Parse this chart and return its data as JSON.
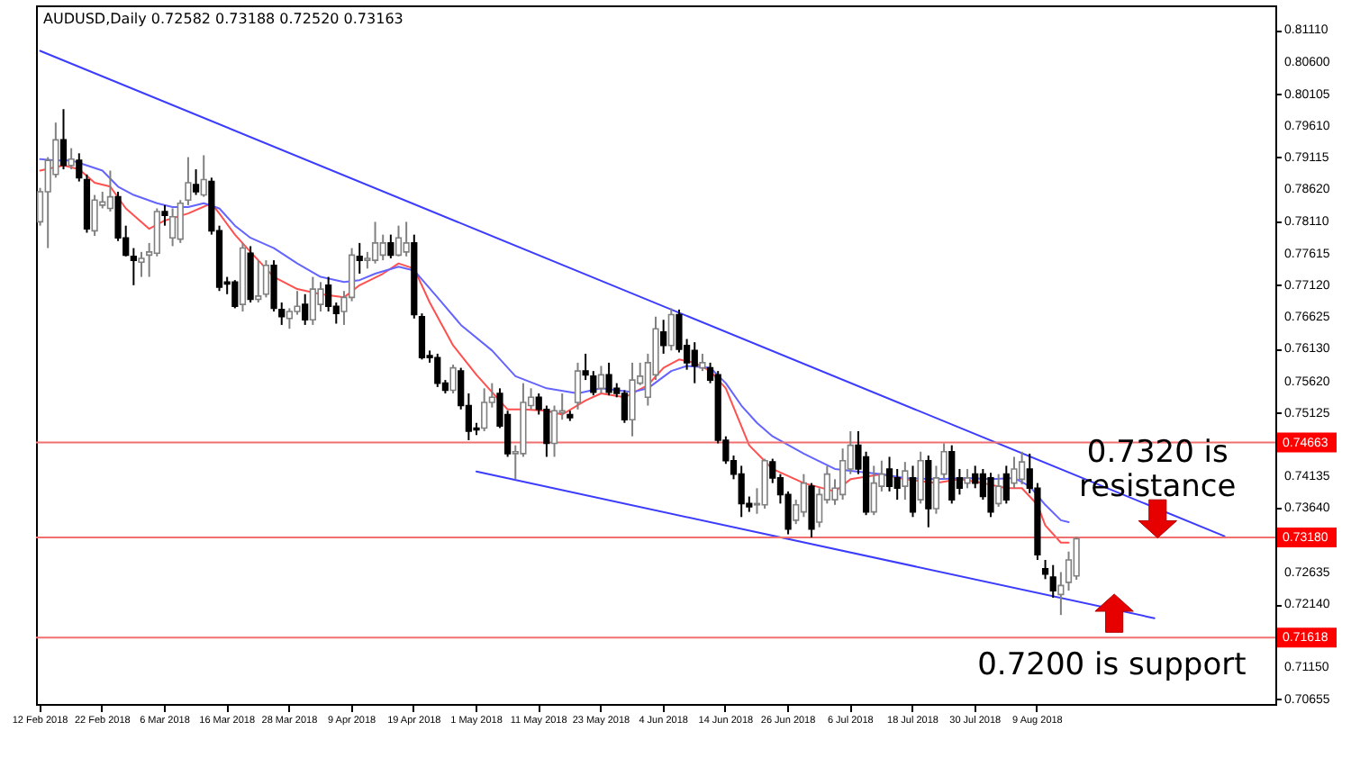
{
  "chart_data": {
    "type": "candlestick",
    "title": "AUDUSD,Daily  0.72582 0.73188 0.72520 0.73163",
    "categories": [
      "12 Feb 2018",
      null,
      null,
      null,
      null,
      null,
      null,
      null,
      "22 Feb 2018",
      null,
      null,
      null,
      null,
      null,
      null,
      null,
      "6 Mar 2018",
      null,
      null,
      null,
      null,
      null,
      null,
      null,
      "16 Mar 2018",
      null,
      null,
      null,
      null,
      null,
      null,
      null,
      "28 Mar 2018",
      null,
      null,
      null,
      null,
      null,
      null,
      null,
      "9 Apr 2018",
      null,
      null,
      null,
      null,
      null,
      null,
      null,
      "19 Apr 2018",
      null,
      null,
      null,
      null,
      null,
      null,
      null,
      "1 May 2018",
      null,
      null,
      null,
      null,
      null,
      null,
      null,
      "11 May 2018",
      null,
      null,
      null,
      null,
      null,
      null,
      null,
      "23 May 2018",
      null,
      null,
      null,
      null,
      null,
      null,
      null,
      "4 Jun 2018",
      null,
      null,
      null,
      null,
      null,
      null,
      null,
      "14 Jun 2018",
      null,
      null,
      null,
      null,
      null,
      null,
      null,
      "26 Jun 2018",
      null,
      null,
      null,
      null,
      null,
      null,
      null,
      "6 Jul 2018",
      null,
      null,
      null,
      null,
      null,
      null,
      null,
      "18 Jul 2018",
      null,
      null,
      null,
      null,
      null,
      null,
      null,
      "30 Jul 2018",
      null,
      null,
      null,
      null,
      null,
      null,
      null,
      "9 Aug 2018",
      null,
      null,
      null,
      null,
      null,
      null,
      null,
      null,
      null,
      null,
      null,
      null,
      null,
      null,
      null,
      null,
      null,
      null,
      null,
      null,
      null,
      null,
      null,
      null,
      null,
      null,
      null,
      null,
      null,
      null
    ],
    "ohlc": [
      [
        0.7811,
        0.7864,
        0.7805,
        0.7858
      ],
      [
        0.7858,
        0.7912,
        0.777,
        0.7907
      ],
      [
        0.7885,
        0.7966,
        0.788,
        0.7939
      ],
      [
        0.7939,
        0.7987,
        0.7893,
        0.7899
      ],
      [
        0.7899,
        0.7926,
        0.7893,
        0.7909
      ],
      [
        0.7907,
        0.7918,
        0.7874,
        0.788
      ],
      [
        0.7877,
        0.7885,
        0.7794,
        0.78
      ],
      [
        0.7797,
        0.7853,
        0.7789,
        0.7845
      ],
      [
        0.7837,
        0.7858,
        0.7832,
        0.7842
      ],
      [
        0.7832,
        0.7891,
        0.7827,
        0.785
      ],
      [
        0.785,
        0.7858,
        0.7781,
        0.7786
      ],
      [
        0.7786,
        0.7805,
        0.7757,
        0.7759
      ],
      [
        0.7757,
        0.777,
        0.7712,
        0.7751
      ],
      [
        0.7748,
        0.7764,
        0.7725,
        0.7754
      ],
      [
        0.7759,
        0.7778,
        0.7725,
        0.7764
      ],
      [
        0.7762,
        0.7832,
        0.7757,
        0.7827
      ],
      [
        0.7827,
        0.7837,
        0.7805,
        0.7821
      ],
      [
        0.7786,
        0.7832,
        0.7773,
        0.7819
      ],
      [
        0.7784,
        0.7845,
        0.7778,
        0.784
      ],
      [
        0.7845,
        0.7912,
        0.7837,
        0.7872
      ],
      [
        0.7869,
        0.7893,
        0.7853,
        0.7858
      ],
      [
        0.7853,
        0.7915,
        0.785,
        0.7877
      ],
      [
        0.7874,
        0.788,
        0.7791,
        0.7797
      ],
      [
        0.7797,
        0.7805,
        0.7703,
        0.7709
      ],
      [
        0.7717,
        0.7725,
        0.7698,
        0.7714
      ],
      [
        0.7717,
        0.772,
        0.7676,
        0.7679
      ],
      [
        0.7682,
        0.7778,
        0.7671,
        0.777
      ],
      [
        0.7762,
        0.7773,
        0.7685,
        0.769
      ],
      [
        0.769,
        0.7751,
        0.7685,
        0.7695
      ],
      [
        0.7698,
        0.7751,
        0.7693,
        0.7743
      ],
      [
        0.7743,
        0.7751,
        0.7671,
        0.7676
      ],
      [
        0.7674,
        0.7685,
        0.765,
        0.7663
      ],
      [
        0.766,
        0.7676,
        0.7644,
        0.7671
      ],
      [
        0.7671,
        0.7703,
        0.7666,
        0.7679
      ],
      [
        0.7682,
        0.7698,
        0.765,
        0.7658
      ],
      [
        0.7658,
        0.7725,
        0.765,
        0.7706
      ],
      [
        0.7682,
        0.7717,
        0.7671,
        0.7706
      ],
      [
        0.7712,
        0.7725,
        0.7671,
        0.7679
      ],
      [
        0.7679,
        0.7685,
        0.7652,
        0.7668
      ],
      [
        0.7671,
        0.7703,
        0.765,
        0.7693
      ],
      [
        0.7693,
        0.777,
        0.7687,
        0.7759
      ],
      [
        0.7757,
        0.7778,
        0.773,
        0.7751
      ],
      [
        0.7751,
        0.7764,
        0.7738,
        0.7754
      ],
      [
        0.7751,
        0.7811,
        0.7746,
        0.7778
      ],
      [
        0.7759,
        0.7791,
        0.7751,
        0.7778
      ],
      [
        0.7778,
        0.7791,
        0.7754,
        0.7759
      ],
      [
        0.7759,
        0.7805,
        0.7757,
        0.7786
      ],
      [
        0.7764,
        0.7811,
        0.7757,
        0.7778
      ],
      [
        0.7778,
        0.7791,
        0.766,
        0.7666
      ],
      [
        0.7663,
        0.7668,
        0.7596,
        0.7599
      ],
      [
        0.7602,
        0.761,
        0.7591,
        0.7599
      ],
      [
        0.7599,
        0.7605,
        0.7553,
        0.7559
      ],
      [
        0.7559,
        0.7564,
        0.7543,
        0.7548
      ],
      [
        0.7548,
        0.7588,
        0.7543,
        0.7583
      ],
      [
        0.7578,
        0.7583,
        0.7518,
        0.7524
      ],
      [
        0.7524,
        0.7543,
        0.747,
        0.7484
      ],
      [
        0.7489,
        0.7497,
        0.7478,
        0.7486
      ],
      [
        0.7489,
        0.7551,
        0.7484,
        0.7529
      ],
      [
        0.7529,
        0.7559,
        0.7521,
        0.7537
      ],
      [
        0.7543,
        0.7551,
        0.7489,
        0.7492
      ],
      [
        0.751,
        0.7516,
        0.7444,
        0.7449
      ],
      [
        0.7449,
        0.7462,
        0.7409,
        0.7452
      ],
      [
        0.7449,
        0.7559,
        0.7444,
        0.7529
      ],
      [
        0.7524,
        0.7551,
        0.7518,
        0.7537
      ],
      [
        0.7537,
        0.7543,
        0.751,
        0.7518
      ],
      [
        0.7518,
        0.7524,
        0.7444,
        0.7465
      ],
      [
        0.7465,
        0.7524,
        0.7444,
        0.7516
      ],
      [
        0.7513,
        0.7543,
        0.7502,
        0.7516
      ],
      [
        0.751,
        0.7516,
        0.75,
        0.7505
      ],
      [
        0.7529,
        0.7591,
        0.7518,
        0.7578
      ],
      [
        0.7578,
        0.7605,
        0.7564,
        0.7572
      ],
      [
        0.757,
        0.7578,
        0.754,
        0.7545
      ],
      [
        0.7551,
        0.7586,
        0.7543,
        0.7572
      ],
      [
        0.7572,
        0.7591,
        0.754,
        0.7545
      ],
      [
        0.7551,
        0.7559,
        0.7537,
        0.7543
      ],
      [
        0.7543,
        0.7548,
        0.7497,
        0.7502
      ],
      [
        0.7502,
        0.7591,
        0.7476,
        0.7564
      ],
      [
        0.7559,
        0.7591,
        0.7556,
        0.757
      ],
      [
        0.7537,
        0.7605,
        0.7524,
        0.7591
      ],
      [
        0.7572,
        0.7663,
        0.7564,
        0.7644
      ],
      [
        0.7639,
        0.7658,
        0.7605,
        0.7618
      ],
      [
        0.7618,
        0.7676,
        0.761,
        0.7666
      ],
      [
        0.7666,
        0.7674,
        0.7607,
        0.7612
      ],
      [
        0.7618,
        0.7628,
        0.758,
        0.7591
      ],
      [
        0.761,
        0.7623,
        0.7559,
        0.7586
      ],
      [
        0.7583,
        0.7605,
        0.7578,
        0.7591
      ],
      [
        0.7583,
        0.7591,
        0.7559,
        0.7564
      ],
      [
        0.7572,
        0.7578,
        0.7465,
        0.747
      ],
      [
        0.747,
        0.7476,
        0.7433,
        0.7438
      ],
      [
        0.7438,
        0.7446,
        0.7409,
        0.7417
      ],
      [
        0.7417,
        0.743,
        0.735,
        0.7371
      ],
      [
        0.7371,
        0.7382,
        0.7358,
        0.7366
      ],
      [
        0.7369,
        0.7395,
        0.7355,
        0.7371
      ],
      [
        0.7369,
        0.7441,
        0.7363,
        0.7438
      ],
      [
        0.7436,
        0.7441,
        0.7403,
        0.7411
      ],
      [
        0.7411,
        0.7417,
        0.7371,
        0.7385
      ],
      [
        0.7385,
        0.739,
        0.7323,
        0.7331
      ],
      [
        0.7345,
        0.7377,
        0.7339,
        0.7369
      ],
      [
        0.7358,
        0.7417,
        0.735,
        0.7403
      ],
      [
        0.7398,
        0.7403,
        0.7318,
        0.7331
      ],
      [
        0.7342,
        0.7395,
        0.7334,
        0.7385
      ],
      [
        0.7377,
        0.743,
        0.7371,
        0.7417
      ],
      [
        0.7377,
        0.7409,
        0.7369,
        0.7395
      ],
      [
        0.7385,
        0.7457,
        0.7377,
        0.7438
      ],
      [
        0.7425,
        0.7484,
        0.7417,
        0.7462
      ],
      [
        0.7462,
        0.7484,
        0.7417,
        0.7425
      ],
      [
        0.7444,
        0.7452,
        0.7353,
        0.7358
      ],
      [
        0.7358,
        0.743,
        0.7353,
        0.7403
      ],
      [
        0.7398,
        0.7438,
        0.739,
        0.7417
      ],
      [
        0.7425,
        0.7444,
        0.739,
        0.7398
      ],
      [
        0.7411,
        0.7425,
        0.7377,
        0.7395
      ],
      [
        0.7398,
        0.7436,
        0.7377,
        0.7422
      ],
      [
        0.7411,
        0.743,
        0.735,
        0.7358
      ],
      [
        0.7377,
        0.7452,
        0.7371,
        0.7438
      ],
      [
        0.7438,
        0.7446,
        0.7334,
        0.7363
      ],
      [
        0.7363,
        0.743,
        0.7355,
        0.7411
      ],
      [
        0.7417,
        0.7465,
        0.7409,
        0.7452
      ],
      [
        0.7452,
        0.7462,
        0.7371,
        0.7377
      ],
      [
        0.7411,
        0.7425,
        0.7385,
        0.7395
      ],
      [
        0.7403,
        0.7425,
        0.7395,
        0.7411
      ],
      [
        0.7417,
        0.743,
        0.7395,
        0.7403
      ],
      [
        0.7417,
        0.7425,
        0.7377,
        0.7382
      ],
      [
        0.7411,
        0.7419,
        0.735,
        0.7358
      ],
      [
        0.7371,
        0.7417,
        0.7366,
        0.7398
      ],
      [
        0.7417,
        0.743,
        0.7371,
        0.7377
      ],
      [
        0.7403,
        0.7444,
        0.7395,
        0.7425
      ],
      [
        0.7409,
        0.7452,
        0.7401,
        0.7436
      ],
      [
        0.7425,
        0.7449,
        0.7387,
        0.7395
      ],
      [
        0.7395,
        0.7403,
        0.7283,
        0.7291
      ],
      [
        0.7269,
        0.7283,
        0.7253,
        0.7261
      ],
      [
        0.7256,
        0.7275,
        0.7224,
        0.7235
      ],
      [
        0.7229,
        0.7264,
        0.7197,
        0.7243
      ],
      [
        0.7248,
        0.7296,
        0.7235,
        0.7283
      ],
      [
        0.7258,
        0.7319,
        0.7252,
        0.7316
      ],
      null,
      null,
      null,
      null,
      null,
      null,
      null,
      null,
      null,
      null,
      null,
      null,
      null,
      null,
      null,
      null,
      null,
      null,
      null,
      null,
      null,
      null,
      null,
      null,
      null
    ],
    "series": [
      {
        "type": "line",
        "color": "#ff5050",
        "values": [
          0.7891,
          null,
          null,
          0.7899,
          null,
          0.7893,
          null,
          0.7872,
          null,
          0.7866,
          null,
          0.7832,
          null,
          null,
          0.78,
          null,
          0.7813,
          null,
          null,
          0.7824,
          null,
          null,
          0.784,
          0.7824,
          null,
          0.7791,
          null,
          0.7764,
          null,
          null,
          0.7725,
          null,
          null,
          0.7706,
          null,
          null,
          0.7698,
          null,
          null,
          0.7693,
          null,
          0.7712,
          null,
          null,
          0.773,
          null,
          0.7746,
          null,
          0.7738,
          null,
          0.7685,
          null,
          null,
          0.7618,
          null,
          null,
          0.7572,
          null,
          null,
          null,
          0.7518,
          null,
          0.7518,
          null,
          null,
          0.7516,
          null,
          0.751,
          null,
          null,
          0.7532,
          null,
          0.7543,
          null,
          null,
          0.7537,
          null,
          null,
          0.7556,
          null,
          0.7583,
          null,
          0.7596,
          null,
          0.7591,
          null,
          0.7578,
          null,
          0.7551,
          null,
          null,
          0.7462,
          null,
          null,
          0.7425,
          null,
          null,
          null,
          0.7403,
          null,
          null,
          null,
          0.739,
          null,
          0.7409,
          null,
          null,
          null,
          0.7417,
          null,
          null,
          0.7409,
          null,
          null,
          null,
          0.7403,
          null,
          null,
          0.7409,
          null,
          null,
          0.7403,
          null,
          null,
          0.7395,
          null,
          0.7395,
          null,
          0.7369,
          0.7337,
          null,
          0.731,
          0.731,
          null,
          null,
          null,
          null,
          null,
          null,
          null,
          null,
          null,
          null,
          null,
          null,
          null,
          null,
          null,
          null,
          null,
          null,
          null,
          null,
          null,
          null,
          null,
          null,
          null,
          null
        ]
      },
      {
        "type": "line",
        "color": "#6464ff",
        "values": [
          0.7909,
          null,
          0.7907,
          null,
          0.7907,
          null,
          0.7899,
          null,
          0.7891,
          null,
          0.7866,
          null,
          0.7853,
          null,
          null,
          0.784,
          null,
          0.7834,
          null,
          0.7834,
          null,
          0.784,
          null,
          0.7832,
          null,
          0.7805,
          null,
          0.7786,
          null,
          null,
          0.777,
          null,
          null,
          0.7746,
          null,
          null,
          0.7725,
          null,
          null,
          0.7717,
          null,
          0.772,
          null,
          0.773,
          null,
          null,
          0.7741,
          null,
          0.7735,
          null,
          null,
          0.7693,
          null,
          null,
          0.765,
          null,
          null,
          null,
          0.761,
          null,
          null,
          0.757,
          null,
          null,
          null,
          0.7551,
          null,
          null,
          null,
          0.7543,
          null,
          null,
          0.7551,
          null,
          null,
          null,
          0.7545,
          null,
          0.7551,
          null,
          null,
          0.7578,
          null,
          0.7586,
          null,
          null,
          0.7583,
          null,
          0.7559,
          null,
          0.7524,
          null,
          0.7497,
          null,
          0.7476,
          null,
          null,
          null,
          0.7449,
          null,
          null,
          null,
          0.7425,
          null,
          0.7422,
          null,
          null,
          null,
          0.7417,
          null,
          null,
          0.7411,
          null,
          null,
          null,
          0.7409,
          null,
          null,
          null,
          0.7411,
          null,
          null,
          0.7409,
          null,
          null,
          0.7411,
          null,
          0.7398,
          null,
          0.7369,
          null,
          0.7345,
          0.7342,
          null,
          null,
          null,
          null,
          null,
          null,
          null,
          null,
          null,
          null,
          null,
          null,
          null,
          null,
          null,
          null,
          null,
          null,
          null,
          null,
          null,
          null,
          null,
          null,
          null,
          null
        ]
      },
      {
        "type": "line",
        "color": "#3c3cff",
        "values": [
          0.8078,
          null,
          null,
          null,
          null,
          null,
          null,
          null,
          null,
          null,
          null,
          null,
          null,
          null,
          null,
          null,
          null,
          null,
          null,
          null,
          null,
          null,
          null,
          null,
          null,
          null,
          null,
          null,
          null,
          null,
          null,
          null,
          null,
          null,
          null,
          null,
          null,
          null,
          null,
          null,
          null,
          null,
          null,
          null,
          null,
          null,
          null,
          null,
          null,
          null,
          null,
          null,
          null,
          null,
          null,
          null,
          null,
          null,
          null,
          null,
          null,
          null,
          null,
          null,
          null,
          null,
          null,
          null,
          null,
          null,
          null,
          null,
          null,
          null,
          null,
          null,
          null,
          null,
          null,
          null,
          null,
          null,
          null,
          null,
          null,
          null,
          null,
          null,
          null,
          null,
          null,
          null,
          null,
          null,
          null,
          null,
          null,
          null,
          null,
          null,
          null,
          null,
          null,
          null,
          null,
          null,
          null,
          null,
          null,
          null,
          null,
          null,
          null,
          null,
          null,
          null,
          null,
          null,
          null,
          null,
          null,
          null,
          null,
          null,
          null,
          null,
          null,
          null,
          null,
          null,
          null,
          null,
          null,
          null,
          null,
          null,
          null,
          null,
          null,
          null,
          null,
          null,
          null,
          null,
          null,
          null,
          null,
          null,
          null,
          null,
          null,
          null,
          0.732,
          null,
          null,
          null,
          null,
          null,
          null
        ]
      },
      {
        "type": "line",
        "color": "#3c3cff",
        "values": [
          null,
          null,
          null,
          null,
          null,
          null,
          null,
          null,
          null,
          null,
          null,
          null,
          null,
          null,
          null,
          null,
          null,
          null,
          null,
          null,
          null,
          null,
          null,
          null,
          null,
          null,
          null,
          null,
          null,
          null,
          null,
          null,
          null,
          null,
          null,
          null,
          null,
          null,
          null,
          null,
          null,
          null,
          null,
          null,
          null,
          null,
          null,
          null,
          null,
          null,
          null,
          null,
          null,
          null,
          null,
          null,
          0.7421,
          null,
          null,
          null,
          null,
          null,
          null,
          null,
          null,
          null,
          null,
          null,
          null,
          null,
          null,
          null,
          null,
          null,
          null,
          null,
          null,
          null,
          null,
          null,
          null,
          null,
          null,
          null,
          null,
          null,
          null,
          null,
          null,
          null,
          null,
          null,
          null,
          null,
          null,
          null,
          null,
          null,
          null,
          null,
          null,
          null,
          null,
          null,
          null,
          null,
          null,
          null,
          null,
          null,
          null,
          null,
          null,
          null,
          null,
          null,
          null,
          null,
          null,
          null,
          null,
          null,
          null,
          null,
          null,
          null,
          null,
          null,
          null,
          null,
          null,
          null,
          null,
          null,
          null,
          null,
          null,
          null,
          null,
          null,
          null,
          null,
          null,
          0.7192,
          null,
          null,
          null,
          null,
          null,
          null,
          null,
          null,
          null,
          null,
          null,
          null,
          null,
          null,
          null
        ]
      }
    ],
    "ylim": [
      0.7058,
      0.8149
    ],
    "yticks": [
      {
        "value": 0.8111,
        "label": "0.81110"
      },
      {
        "value": 0.806,
        "label": "0.80600"
      },
      {
        "value": 0.80105,
        "label": "0.80105"
      },
      {
        "value": 0.7961,
        "label": "0.79610"
      },
      {
        "value": 0.79115,
        "label": "0.79115"
      },
      {
        "value": 0.7862,
        "label": "0.78620"
      },
      {
        "value": 0.7811,
        "label": "0.78110"
      },
      {
        "value": 0.77615,
        "label": "0.77615"
      },
      {
        "value": 0.7712,
        "label": "0.77120"
      },
      {
        "value": 0.76625,
        "label": "0.76625"
      },
      {
        "value": 0.7613,
        "label": "0.76130"
      },
      {
        "value": 0.7562,
        "label": "0.75620"
      },
      {
        "value": 0.75125,
        "label": "0.75125"
      },
      {
        "value": 0.74135,
        "label": "0.74135"
      },
      {
        "value": 0.7364,
        "label": "0.73640"
      },
      {
        "value": 0.72635,
        "label": "0.72635"
      },
      {
        "value": 0.7214,
        "label": "0.72140"
      },
      {
        "value": 0.7115,
        "label": "0.71150"
      },
      {
        "value": 0.70655,
        "label": "0.70655"
      }
    ],
    "ref_lines": [
      {
        "axis": "y",
        "value": 0.74663,
        "label": "0.74663",
        "color": "#f07070"
      },
      {
        "axis": "y",
        "value": 0.7318,
        "label": "0.73180",
        "color": "#f07070"
      },
      {
        "axis": "y",
        "value": 0.71618,
        "label": "0.71618",
        "color": "#f07070"
      }
    ],
    "annotations": [
      "0.7320 is\nresistance",
      "0.7200 is support"
    ],
    "grid": false
  }
}
